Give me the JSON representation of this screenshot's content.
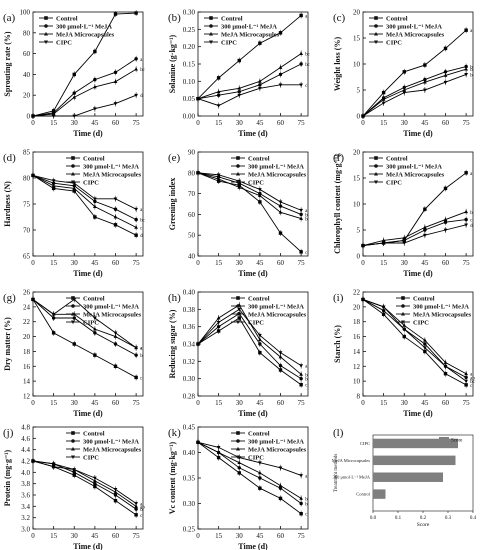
{
  "figure": {
    "legend_labels": [
      "Control",
      "300 μmol·L⁻¹ MeJA",
      "MeJA Microcapsules",
      "CIPC"
    ],
    "series_colors": [
      "#000000",
      "#000000",
      "#000000",
      "#000000"
    ],
    "markers": [
      "square",
      "circle",
      "triangle-up",
      "triangle-down"
    ]
  },
  "chart_data": [
    {
      "id": "a",
      "type": "line",
      "panel_label": "(a)",
      "xlabel": "Time (d)",
      "ylabel": "Sprouting rate (%)",
      "x": [
        0,
        15,
        30,
        45,
        60,
        75
      ],
      "xlim": [
        0,
        80
      ],
      "ylim": [
        0,
        100
      ],
      "xticks": [
        0,
        15,
        30,
        45,
        60,
        75
      ],
      "yticks": [
        0,
        20,
        40,
        60,
        80,
        100
      ],
      "legend_pos": "top-left",
      "series": [
        {
          "name": "Control",
          "values": [
            0,
            5,
            40,
            62,
            98,
            99
          ],
          "sig": ""
        },
        {
          "name": "300 μmol·L⁻¹ MeJA",
          "values": [
            0,
            3,
            22,
            35,
            42,
            55
          ],
          "sig": "a"
        },
        {
          "name": "MeJA Microcapsules",
          "values": [
            0,
            2,
            18,
            28,
            33,
            45
          ],
          "sig": "bc"
        },
        {
          "name": "CIPC",
          "values": [
            0,
            0,
            0,
            7,
            12,
            20
          ],
          "sig": "d"
        }
      ]
    },
    {
      "id": "b",
      "type": "line",
      "panel_label": "(b)",
      "xlabel": "Time (d)",
      "ylabel": "Solanine (g·kg⁻¹)",
      "x": [
        0,
        15,
        30,
        45,
        60,
        75
      ],
      "xlim": [
        0,
        80
      ],
      "ylim": [
        0,
        0.3
      ],
      "xticks": [
        0,
        15,
        30,
        45,
        60,
        75
      ],
      "yticks": [
        0,
        0.05,
        0.1,
        0.15,
        0.2,
        0.25,
        0.3
      ],
      "ytick_labels": [
        "0.00",
        "0.05",
        "0.10",
        "0.15",
        "0.20",
        "0.25",
        "0.30"
      ],
      "legend_pos": "top-left",
      "series": [
        {
          "name": "Control",
          "values": [
            0.05,
            0.11,
            0.16,
            0.21,
            0.24,
            0.29
          ],
          "sig": "a"
        },
        {
          "name": "300 μmol·L⁻¹ MeJA",
          "values": [
            0.05,
            0.06,
            0.07,
            0.09,
            0.12,
            0.15
          ],
          "sig": "bc"
        },
        {
          "name": "MeJA Microcapsules",
          "values": [
            0.05,
            0.07,
            0.08,
            0.1,
            0.14,
            0.18
          ],
          "sig": "bc"
        },
        {
          "name": "CIPC",
          "values": [
            0.05,
            0.03,
            0.06,
            0.08,
            0.09,
            0.09
          ],
          "sig": "c"
        }
      ]
    },
    {
      "id": "c",
      "type": "line",
      "panel_label": "(c)",
      "xlabel": "Time (d)",
      "ylabel": "Weight loss (%)",
      "x": [
        0,
        15,
        30,
        45,
        60,
        75
      ],
      "xlim": [
        0,
        80
      ],
      "ylim": [
        0,
        20
      ],
      "xticks": [
        0,
        15,
        30,
        45,
        60,
        75
      ],
      "yticks": [
        0,
        5,
        10,
        15,
        20
      ],
      "legend_pos": "top-left",
      "series": [
        {
          "name": "Control",
          "values": [
            0,
            4.5,
            8.5,
            9.8,
            13.0,
            16.5
          ],
          "sig": "a"
        },
        {
          "name": "300 μmol·L⁻¹ MeJA",
          "values": [
            0,
            3.5,
            5.5,
            7.0,
            8.5,
            9.5
          ],
          "sig": "b"
        },
        {
          "name": "MeJA Microcapsules",
          "values": [
            0,
            3.2,
            5.0,
            6.5,
            7.8,
            9.0
          ],
          "sig": "b"
        },
        {
          "name": "CIPC",
          "values": [
            0,
            2.5,
            4.5,
            5.0,
            6.5,
            8.0
          ],
          "sig": "b"
        }
      ]
    },
    {
      "id": "d",
      "type": "line",
      "panel_label": "(d)",
      "xlabel": "Time (d)",
      "ylabel": "Hardness (N)",
      "x": [
        0,
        15,
        30,
        45,
        60,
        75
      ],
      "xlim": [
        0,
        80
      ],
      "ylim": [
        65,
        85
      ],
      "xticks": [
        0,
        15,
        30,
        45,
        60,
        75
      ],
      "yticks": [
        65,
        70,
        75,
        80,
        85
      ],
      "legend_pos": "top-right",
      "series": [
        {
          "name": "Control",
          "values": [
            80.5,
            78.0,
            77.5,
            72.5,
            71.0,
            69.0
          ],
          "sig": "d"
        },
        {
          "name": "300 μmol·L⁻¹ MeJA",
          "values": [
            80.5,
            79.0,
            78.5,
            75.5,
            74.0,
            72.0
          ],
          "sig": "bc"
        },
        {
          "name": "MeJA Microcapsules",
          "values": [
            80.5,
            78.5,
            78.0,
            74.5,
            72.5,
            70.5
          ],
          "sig": "c"
        },
        {
          "name": "CIPC",
          "values": [
            80.5,
            79.5,
            79.0,
            76.0,
            76.0,
            74.0
          ],
          "sig": "a"
        }
      ]
    },
    {
      "id": "e",
      "type": "line",
      "panel_label": "(e)",
      "xlabel": "Time (d)",
      "ylabel": "Greening index",
      "x": [
        0,
        15,
        30,
        45,
        60,
        75
      ],
      "xlim": [
        0,
        80
      ],
      "ylim": [
        40,
        90
      ],
      "xticks": [
        0,
        15,
        30,
        45,
        60,
        75
      ],
      "yticks": [
        40,
        50,
        60,
        70,
        80,
        90
      ],
      "legend_pos": "top-right",
      "series": [
        {
          "name": "Control",
          "values": [
            80,
            76,
            74,
            66,
            51,
            42
          ],
          "sig": "c"
        },
        {
          "name": "300 μmol·L⁻¹ MeJA",
          "values": [
            80,
            78,
            75,
            70,
            64,
            60
          ],
          "sig": "b"
        },
        {
          "name": "MeJA Microcapsules",
          "values": [
            80,
            77,
            73,
            69,
            61,
            58
          ],
          "sig": "b"
        },
        {
          "name": "CIPC",
          "values": [
            80,
            79,
            76,
            72,
            66,
            62
          ],
          "sig": "a"
        }
      ]
    },
    {
      "id": "f",
      "type": "line",
      "panel_label": "(f)",
      "xlabel": "Time (d)",
      "ylabel": "Chlorophyll content (mg·g⁻¹)",
      "x": [
        0,
        15,
        30,
        45,
        60,
        75
      ],
      "xlim": [
        0,
        80
      ],
      "ylim": [
        0,
        20
      ],
      "xticks": [
        0,
        15,
        30,
        45,
        60,
        75
      ],
      "yticks": [
        0,
        5,
        10,
        15,
        20
      ],
      "legend_pos": "top-left",
      "series": [
        {
          "name": "Control",
          "values": [
            2,
            2.5,
            3,
            9,
            13,
            16
          ],
          "sig": "a"
        },
        {
          "name": "300 μmol·L⁻¹ MeJA",
          "values": [
            2,
            2.5,
            3,
            5,
            6.5,
            7
          ],
          "sig": "c"
        },
        {
          "name": "MeJA Microcapsules",
          "values": [
            2,
            3,
            3.5,
            5.5,
            7,
            8.5
          ],
          "sig": "b"
        },
        {
          "name": "CIPC",
          "values": [
            2,
            2.5,
            2.5,
            4,
            5,
            6
          ],
          "sig": "d"
        }
      ]
    },
    {
      "id": "g",
      "type": "line",
      "panel_label": "(g)",
      "xlabel": "Time (d)",
      "ylabel": "Dry matter (%)",
      "x": [
        0,
        15,
        30,
        45,
        60,
        75
      ],
      "xlim": [
        0,
        80
      ],
      "ylim": [
        12,
        26
      ],
      "xticks": [
        0,
        15,
        30,
        45,
        60,
        75
      ],
      "yticks": [
        12,
        14,
        16,
        18,
        20,
        22,
        24,
        26
      ],
      "legend_pos": "top-right",
      "series": [
        {
          "name": "Control",
          "values": [
            25,
            20.5,
            19,
            17.5,
            16,
            14.5
          ],
          "sig": "c"
        },
        {
          "name": "300 μmol·L⁻¹ MeJA",
          "values": [
            25,
            22.5,
            22.5,
            20.5,
            19,
            17.5
          ],
          "sig": "b"
        },
        {
          "name": "MeJA Microcapsules",
          "values": [
            25,
            23,
            23,
            21,
            20,
            18.5
          ],
          "sig": "a"
        },
        {
          "name": "CIPC",
          "values": [
            25,
            23,
            25,
            22.5,
            20.5,
            18.5
          ],
          "sig": "a"
        }
      ]
    },
    {
      "id": "h",
      "type": "line",
      "panel_label": "(h)",
      "xlabel": "Time (d)",
      "ylabel": "Reducing sugar (%)",
      "x": [
        0,
        15,
        30,
        45,
        60,
        75
      ],
      "xlim": [
        0,
        80
      ],
      "ylim": [
        0.28,
        0.4
      ],
      "xticks": [
        0,
        15,
        30,
        45,
        60,
        75
      ],
      "yticks": [
        0.28,
        0.3,
        0.32,
        0.34,
        0.36,
        0.38,
        0.4
      ],
      "ytick_labels": [
        "0.28",
        "0.30",
        "0.32",
        "0.34",
        "0.36",
        "0.38",
        "0.40"
      ],
      "legend_pos": "top-right",
      "series": [
        {
          "name": "Control",
          "values": [
            0.34,
            0.355,
            0.37,
            0.33,
            0.31,
            0.293
          ],
          "sig": "c"
        },
        {
          "name": "300 μmol·L⁻¹ MeJA",
          "values": [
            0.34,
            0.36,
            0.375,
            0.34,
            0.315,
            0.3
          ],
          "sig": "b"
        },
        {
          "name": "MeJA Microcapsules",
          "values": [
            0.34,
            0.37,
            0.385,
            0.345,
            0.325,
            0.305
          ],
          "sig": "b"
        },
        {
          "name": "CIPC",
          "values": [
            0.34,
            0.365,
            0.38,
            0.35,
            0.33,
            0.315
          ],
          "sig": "a"
        }
      ]
    },
    {
      "id": "i",
      "type": "line",
      "panel_label": "(i)",
      "xlabel": "Time (d)",
      "ylabel": "Starch (%)",
      "x": [
        0,
        15,
        30,
        45,
        60,
        75
      ],
      "xlim": [
        0,
        80
      ],
      "ylim": [
        8,
        22
      ],
      "xticks": [
        0,
        15,
        30,
        45,
        60,
        75
      ],
      "yticks": [
        8,
        10,
        12,
        14,
        16,
        18,
        20,
        22
      ],
      "legend_pos": "top-right",
      "series": [
        {
          "name": "Control",
          "values": [
            21,
            19,
            16,
            14,
            11,
            9.5
          ],
          "sig": "c"
        },
        {
          "name": "300 μmol·L⁻¹ MeJA",
          "values": [
            21,
            19.5,
            17,
            15,
            12,
            10.5
          ],
          "sig": "ab"
        },
        {
          "name": "MeJA Microcapsules",
          "values": [
            21,
            20,
            17.5,
            15.5,
            12.5,
            11
          ],
          "sig": "a"
        },
        {
          "name": "CIPC",
          "values": [
            21,
            20,
            17,
            14.5,
            12,
            10
          ],
          "sig": "bc"
        }
      ]
    },
    {
      "id": "j",
      "type": "line",
      "panel_label": "(j)",
      "xlabel": "Time (d)",
      "ylabel": "Protein (mg·g⁻¹)",
      "x": [
        0,
        15,
        30,
        45,
        60,
        75
      ],
      "xlim": [
        0,
        80
      ],
      "ylim": [
        3.0,
        4.8
      ],
      "xticks": [
        0,
        15,
        30,
        45,
        60,
        75
      ],
      "yticks": [
        3.0,
        3.2,
        3.4,
        3.6,
        3.8,
        4.0,
        4.2,
        4.4,
        4.6,
        4.8
      ],
      "ytick_labels": [
        "3.0",
        "3.2",
        "3.4",
        "3.6",
        "3.8",
        "4.0",
        "4.2",
        "4.4",
        "4.6",
        "4.8"
      ],
      "legend_pos": "top-right",
      "series": [
        {
          "name": "Control",
          "values": [
            4.2,
            4.1,
            3.95,
            3.75,
            3.5,
            3.25
          ],
          "sig": "c"
        },
        {
          "name": "300 μmol·L⁻¹ MeJA",
          "values": [
            4.2,
            4.15,
            4.0,
            3.8,
            3.6,
            3.35
          ],
          "sig": "b"
        },
        {
          "name": "MeJA Microcapsules",
          "values": [
            4.2,
            4.1,
            4.05,
            3.85,
            3.65,
            3.4
          ],
          "sig": "ab"
        },
        {
          "name": "CIPC",
          "values": [
            4.2,
            4.15,
            4.05,
            3.9,
            3.7,
            3.45
          ],
          "sig": "a"
        }
      ]
    },
    {
      "id": "k",
      "type": "line",
      "panel_label": "(k)",
      "xlabel": "Time (d)",
      "ylabel": "Vc content (mg·kg⁻¹)",
      "x": [
        0,
        15,
        30,
        45,
        60,
        75
      ],
      "xlim": [
        0,
        80
      ],
      "ylim": [
        0.25,
        0.45
      ],
      "xticks": [
        0,
        15,
        30,
        45,
        60,
        75
      ],
      "yticks": [
        0.25,
        0.3,
        0.35,
        0.4,
        0.45
      ],
      "ytick_labels": [
        "0.25",
        "0.30",
        "0.35",
        "0.40",
        "0.45"
      ],
      "legend_pos": "top-right",
      "series": [
        {
          "name": "Control",
          "values": [
            0.42,
            0.39,
            0.36,
            0.33,
            0.31,
            0.28
          ],
          "sig": "c"
        },
        {
          "name": "300 μmol·L⁻¹ MeJA",
          "values": [
            0.42,
            0.4,
            0.37,
            0.35,
            0.33,
            0.3
          ],
          "sig": "b"
        },
        {
          "name": "MeJA Microcapsules",
          "values": [
            0.42,
            0.4,
            0.38,
            0.36,
            0.335,
            0.31
          ],
          "sig": "b"
        },
        {
          "name": "CIPC",
          "values": [
            0.42,
            0.41,
            0.39,
            0.38,
            0.37,
            0.355
          ],
          "sig": "a"
        }
      ]
    },
    {
      "id": "l",
      "type": "bar",
      "orientation": "horizontal",
      "panel_label": "(l)",
      "xlabel": "Score",
      "ylabel": "Treatment methods",
      "categories": [
        "CIPC",
        "MeJA Microcapsules",
        "300 μmol·L⁻¹ MeJA",
        "Control"
      ],
      "values": [
        0.34,
        0.33,
        0.28,
        0.05
      ],
      "xlim": [
        0,
        0.4
      ],
      "xticks": [
        0,
        0.1,
        0.2,
        0.3,
        0.4
      ],
      "xtick_labels": [
        "0.0",
        "0.1",
        "0.2",
        "0.3",
        "0.4"
      ],
      "legend": [
        "Score"
      ],
      "legend_pos": "top-right",
      "bar_color": "#7f7f7f"
    }
  ]
}
